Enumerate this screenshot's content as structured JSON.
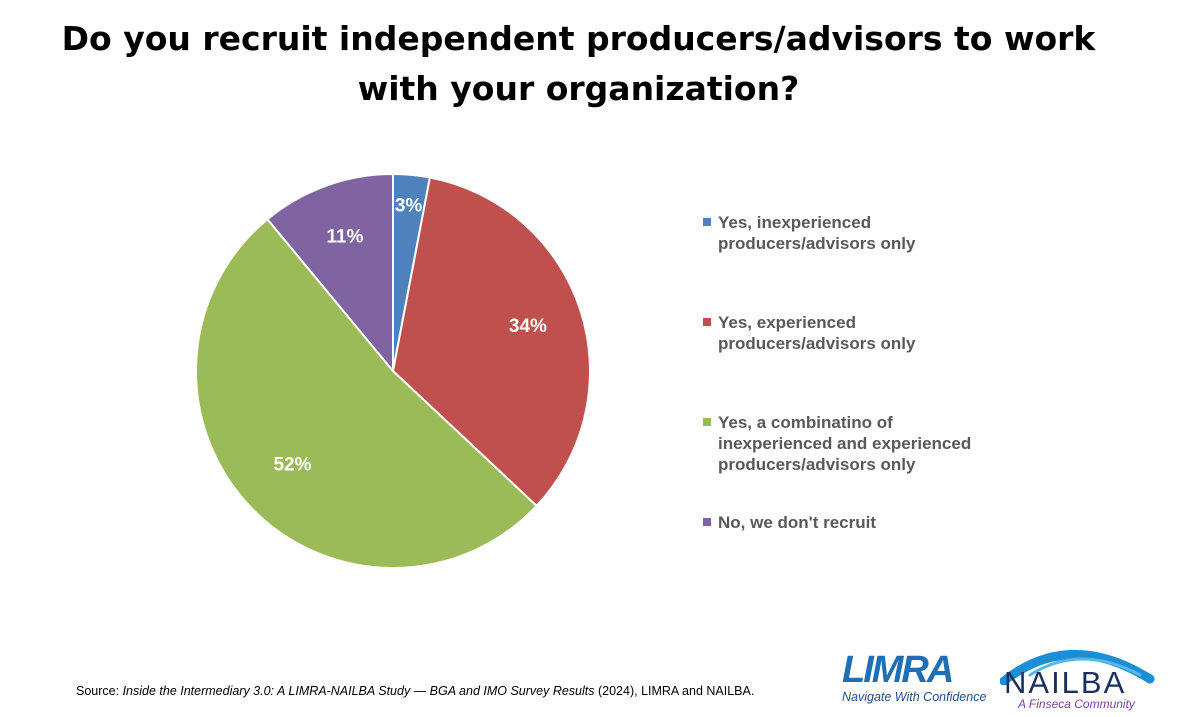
{
  "chart_data": {
    "type": "pie",
    "title": "Do you recruit independent producers/advisors to work with your organization?",
    "categories": [
      "Yes, inexperienced producers/advisors only",
      "Yes, experienced producers/advisors only",
      "Yes, a combinatino of inexperienced and experienced producers/advisors only",
      "No, we don't recruit"
    ],
    "values": [
      3,
      34,
      52,
      11
    ],
    "data_labels": [
      "3%",
      "34%",
      "52%",
      "11%"
    ],
    "colors": [
      "#4f81bd",
      "#c0504d",
      "#9bbb59",
      "#8064a2"
    ],
    "legend_position": "right"
  },
  "source": {
    "prefix": "Source: ",
    "study": "Inside the Intermediary 3.0: A LIMRA-NAILBA Study — BGA and IMO Survey Results",
    "suffix": " (2024), LIMRA and NAILBA."
  },
  "logos": {
    "limra": {
      "word": "LIMRA",
      "tagline": "Navigate With Confidence",
      "icon": "limra-logo-icon"
    },
    "nailba": {
      "word": "NAILBA",
      "tagline": "A Finseca Community",
      "icon": "nailba-arc-icon"
    }
  }
}
